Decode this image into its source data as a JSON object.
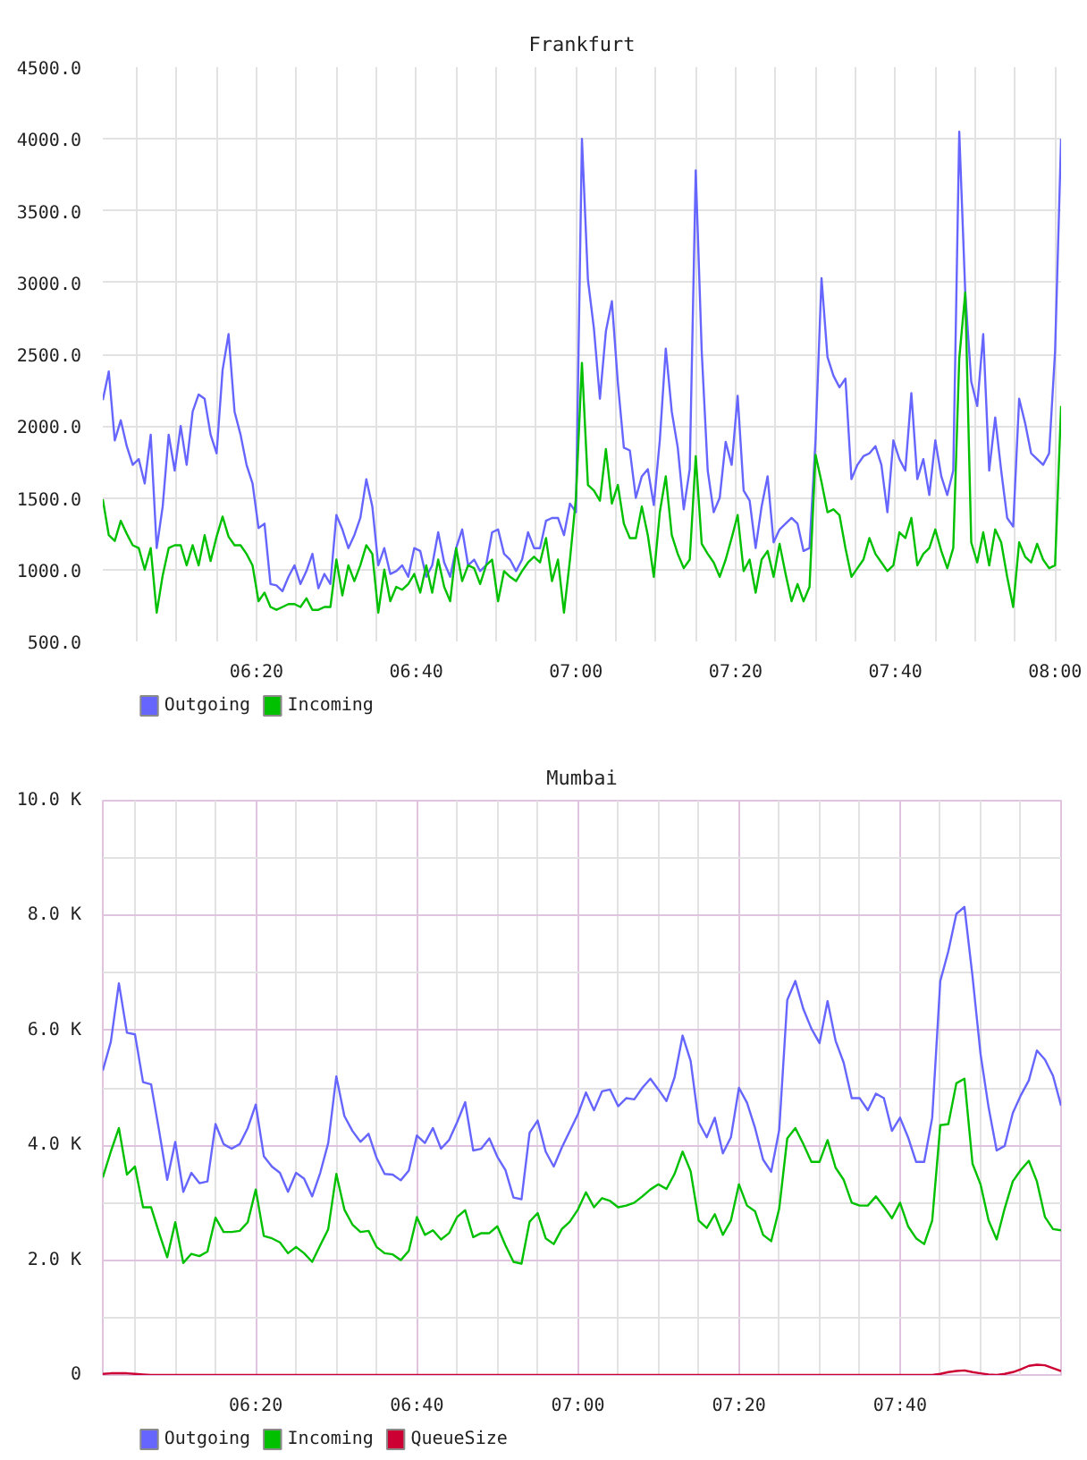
{
  "chart_data": [
    {
      "type": "line",
      "title": "Frankfurt",
      "x": [
        6.0125,
        6.025,
        6.0375,
        6.05,
        6.0625,
        6.075,
        6.0875,
        6.1,
        6.1125,
        6.125,
        6.1375,
        6.15,
        6.1625,
        6.175,
        6.1875,
        6.2,
        6.2125,
        6.225,
        6.2375,
        6.25,
        6.2625,
        6.275,
        6.2875,
        6.3,
        6.3125,
        6.325,
        6.3375,
        6.35,
        6.3625,
        6.375,
        6.3875,
        6.4,
        6.4125,
        6.425,
        6.4375,
        6.45,
        6.4625,
        6.475,
        6.4875,
        6.5,
        6.5125,
        6.525,
        6.5375,
        6.55,
        6.5625,
        6.575,
        6.5875,
        6.6,
        6.6125,
        6.625,
        6.6375,
        6.65,
        6.6625,
        6.675,
        6.6875,
        6.7,
        6.7125,
        6.725,
        6.7375,
        6.75,
        6.7625,
        6.775,
        6.7875,
        6.8,
        6.8125,
        6.825,
        6.8375,
        6.85,
        6.8625,
        6.875,
        6.8875,
        6.9,
        6.9125,
        6.925,
        6.9375,
        6.95,
        6.9625,
        6.975,
        6.9875,
        7.0,
        7.0125,
        7.025,
        7.0375,
        7.05,
        7.0625,
        7.075,
        7.0875,
        7.1,
        7.1125,
        7.125,
        7.1375,
        7.15,
        7.1625,
        7.175,
        7.1875,
        7.2,
        7.2125,
        7.225,
        7.2375,
        7.25,
        7.2625,
        7.275,
        7.2875,
        7.3,
        7.3125,
        7.325,
        7.3375,
        7.35,
        7.3625,
        7.375,
        7.3875,
        7.4,
        7.4125,
        7.425,
        7.4375,
        7.45,
        7.4625,
        7.475,
        7.4875,
        7.5,
        7.5125,
        7.525,
        7.5375,
        7.55,
        7.5625,
        7.575,
        7.5875,
        7.6,
        7.6125,
        7.625,
        7.6375,
        7.65,
        7.6625,
        7.675,
        7.6875,
        7.7,
        7.7125,
        7.725,
        7.7375,
        7.75,
        7.7625,
        7.775,
        7.7875,
        7.8,
        7.8125,
        7.825,
        7.8375,
        7.85,
        7.8625,
        7.875,
        7.8875,
        7.9,
        7.9125,
        7.925,
        7.9375,
        7.95,
        7.9625,
        7.975,
        7.9875,
        8.0,
        8.0125
      ],
      "xlim": [
        6.0125,
        8.0125
      ],
      "xticks": [
        {
          "value": 6.0833,
          "label": null
        },
        {
          "value": 6.1667,
          "label": null
        },
        {
          "value": 6.25,
          "label": null
        },
        {
          "value": 6.3333,
          "label": "06:20"
        },
        {
          "value": 6.4167,
          "label": null
        },
        {
          "value": 6.5,
          "label": null
        },
        {
          "value": 6.5833,
          "label": null
        },
        {
          "value": 6.6667,
          "label": "06:40"
        },
        {
          "value": 6.75,
          "label": null
        },
        {
          "value": 6.8333,
          "label": null
        },
        {
          "value": 6.9167,
          "label": null
        },
        {
          "value": 7.0,
          "label": "07:00"
        },
        {
          "value": 7.0833,
          "label": null
        },
        {
          "value": 7.1667,
          "label": null
        },
        {
          "value": 7.25,
          "label": null
        },
        {
          "value": 7.3333,
          "label": "07:20"
        },
        {
          "value": 7.4167,
          "label": null
        },
        {
          "value": 7.5,
          "label": null
        },
        {
          "value": 7.5833,
          "label": null
        },
        {
          "value": 7.6667,
          "label": "07:40"
        },
        {
          "value": 7.75,
          "label": null
        },
        {
          "value": 7.8333,
          "label": null
        },
        {
          "value": 7.9167,
          "label": null
        },
        {
          "value": 8.0,
          "label": "08:00"
        }
      ],
      "ylim": [
        500,
        4500
      ],
      "yticks": [
        {
          "value": 500,
          "label": "500.0"
        },
        {
          "value": 1000,
          "label": "1000.0"
        },
        {
          "value": 1500,
          "label": "1500.0"
        },
        {
          "value": 2000,
          "label": "2000.0"
        },
        {
          "value": 2500,
          "label": "2500.0"
        },
        {
          "value": 3000,
          "label": "3000.0"
        },
        {
          "value": 3500,
          "label": "3500.0"
        },
        {
          "value": 4000,
          "label": "4000.0"
        },
        {
          "value": 4500,
          "label": "4500.0"
        }
      ],
      "grid": true,
      "legend": "bottom left",
      "series": [
        {
          "name": "Outgoing",
          "color": "#6666ff",
          "values": [
            2180,
            2380,
            1900,
            2040,
            1860,
            1730,
            1770,
            1600,
            1940,
            1150,
            1440,
            1940,
            1690,
            2000,
            1730,
            2100,
            2220,
            2190,
            1940,
            1810,
            2390,
            2640,
            2100,
            1940,
            1730,
            1600,
            1290,
            1320,
            900,
            890,
            850,
            950,
            1030,
            900,
            990,
            1110,
            870,
            970,
            900,
            1380,
            1280,
            1150,
            1240,
            1360,
            1630,
            1440,
            1030,
            1150,
            970,
            990,
            1030,
            950,
            1150,
            1130,
            950,
            1030,
            1260,
            1050,
            950,
            1150,
            1280,
            1030,
            1070,
            990,
            1030,
            1260,
            1280,
            1110,
            1070,
            990,
            1070,
            1260,
            1150,
            1150,
            1340,
            1360,
            1360,
            1240,
            1460,
            1400,
            4000,
            3020,
            2680,
            2190,
            2660,
            2870,
            2300,
            1850,
            1830,
            1500,
            1650,
            1700,
            1450,
            1900,
            2540,
            2100,
            1850,
            1420,
            1700,
            3780,
            2520,
            1690,
            1400,
            1500,
            1890,
            1730,
            2210,
            1550,
            1480,
            1150,
            1440,
            1650,
            1190,
            1280,
            1320,
            1360,
            1320,
            1130,
            1150,
            1900,
            3030,
            2480,
            2350,
            2270,
            2330,
            1630,
            1730,
            1790,
            1810,
            1860,
            1730,
            1400,
            1900,
            1770,
            1690,
            2230,
            1630,
            1770,
            1520,
            1900,
            1650,
            1520,
            1690,
            4050,
            2930,
            2310,
            2140,
            2640,
            1690,
            2060,
            1690,
            1360,
            1300,
            2190,
            2020,
            1810,
            1770,
            1730,
            1810,
            2520,
            4000
          ]
        },
        {
          "name": "Incoming",
          "color": "#00c000",
          "values": [
            1490,
            1240,
            1200,
            1340,
            1250,
            1170,
            1150,
            1000,
            1150,
            700,
            960,
            1150,
            1170,
            1170,
            1030,
            1170,
            1030,
            1240,
            1060,
            1230,
            1370,
            1230,
            1170,
            1170,
            1110,
            1030,
            780,
            840,
            740,
            720,
            740,
            760,
            760,
            740,
            800,
            720,
            720,
            740,
            740,
            1070,
            820,
            1030,
            920,
            1030,
            1170,
            1110,
            700,
            1000,
            780,
            880,
            860,
            900,
            970,
            840,
            1030,
            840,
            1070,
            880,
            780,
            1150,
            920,
            1030,
            1010,
            900,
            1030,
            1070,
            780,
            990,
            950,
            920,
            990,
            1050,
            1090,
            1050,
            1220,
            920,
            1070,
            700,
            1070,
            1500,
            2440,
            1590,
            1550,
            1480,
            1840,
            1460,
            1590,
            1320,
            1220,
            1220,
            1440,
            1240,
            950,
            1400,
            1650,
            1240,
            1110,
            1010,
            1070,
            1790,
            1180,
            1110,
            1050,
            950,
            1070,
            1220,
            1380,
            990,
            1070,
            840,
            1070,
            1130,
            950,
            1180,
            970,
            780,
            900,
            780,
            880,
            1800,
            1610,
            1400,
            1420,
            1380,
            1150,
            950,
            1010,
            1070,
            1220,
            1110,
            1050,
            990,
            1030,
            1260,
            1220,
            1360,
            1030,
            1110,
            1150,
            1280,
            1130,
            1010,
            1150,
            2470,
            2930,
            1190,
            1050,
            1260,
            1030,
            1280,
            1190,
            950,
            740,
            1190,
            1090,
            1050,
            1180,
            1070,
            1010,
            1030,
            2140
          ]
        }
      ]
    },
    {
      "type": "line",
      "title": "Mumbai",
      "x": [
        6.0167,
        6.0333,
        6.05,
        6.0667,
        6.0833,
        6.1,
        6.1167,
        6.1333,
        6.15,
        6.1667,
        6.1833,
        6.2,
        6.2167,
        6.2333,
        6.25,
        6.2667,
        6.2833,
        6.3,
        6.3167,
        6.3333,
        6.35,
        6.3667,
        6.3833,
        6.4,
        6.4167,
        6.4333,
        6.45,
        6.4667,
        6.4833,
        6.5,
        6.5167,
        6.5333,
        6.55,
        6.5667,
        6.5833,
        6.6,
        6.6167,
        6.6333,
        6.65,
        6.6667,
        6.6833,
        6.7,
        6.7167,
        6.7333,
        6.75,
        6.7667,
        6.7833,
        6.8,
        6.8167,
        6.8333,
        6.85,
        6.8667,
        6.8833,
        6.9,
        6.9167,
        6.9333,
        6.95,
        6.9667,
        6.9833,
        7.0,
        7.0167,
        7.0333,
        7.05,
        7.0667,
        7.0833,
        7.1,
        7.1167,
        7.1333,
        7.15,
        7.1667,
        7.1833,
        7.2,
        7.2167,
        7.2333,
        7.25,
        7.2667,
        7.2833,
        7.3,
        7.3167,
        7.3333,
        7.35,
        7.3667,
        7.3833,
        7.4,
        7.4167,
        7.4333,
        7.45,
        7.4667,
        7.4833,
        7.5,
        7.5167,
        7.5333,
        7.55,
        7.5667,
        7.5833,
        7.6,
        7.6167,
        7.6333,
        7.65,
        7.6667,
        7.6833,
        7.7,
        7.7167,
        7.7333,
        7.75,
        7.7667,
        7.7833,
        7.8,
        7.8167,
        7.8333,
        7.85,
        7.8667,
        7.8833,
        7.9,
        7.9167,
        7.9333,
        7.95,
        7.9667,
        7.9833,
        8.0
      ],
      "xlim": [
        6.0167,
        8.0
      ],
      "xticks": [
        {
          "value": 6.0833,
          "label": null
        },
        {
          "value": 6.1667,
          "label": null
        },
        {
          "value": 6.25,
          "label": null
        },
        {
          "value": 6.3333,
          "label": "06:20"
        },
        {
          "value": 6.4167,
          "label": null
        },
        {
          "value": 6.5,
          "label": null
        },
        {
          "value": 6.5833,
          "label": null
        },
        {
          "value": 6.6667,
          "label": "06:40"
        },
        {
          "value": 6.75,
          "label": null
        },
        {
          "value": 6.8333,
          "label": null
        },
        {
          "value": 6.9167,
          "label": null
        },
        {
          "value": 7.0,
          "label": "07:00"
        },
        {
          "value": 7.0833,
          "label": null
        },
        {
          "value": 7.1667,
          "label": null
        },
        {
          "value": 7.25,
          "label": null
        },
        {
          "value": 7.3333,
          "label": "07:20"
        },
        {
          "value": 7.4167,
          "label": null
        },
        {
          "value": 7.5,
          "label": null
        },
        {
          "value": 7.5833,
          "label": null
        },
        {
          "value": 7.6667,
          "label": "07:40"
        },
        {
          "value": 7.75,
          "label": null
        },
        {
          "value": 7.8333,
          "label": null
        },
        {
          "value": 7.9167,
          "label": null
        }
      ],
      "ylim": [
        0,
        10000
      ],
      "yticks": [
        0,
        {
          "value": 1000,
          "label": null
        },
        {
          "value": 2000,
          "label": "2.0 K"
        },
        {
          "value": 3000,
          "label": null
        },
        {
          "value": 4000,
          "label": "4.0 K"
        },
        {
          "value": 5000,
          "label": null
        },
        {
          "value": 6000,
          "label": "6.0 K"
        },
        {
          "value": 7000,
          "label": null
        },
        {
          "value": 8000,
          "label": "8.0 K"
        },
        {
          "value": 9000,
          "label": null
        },
        {
          "value": 10000,
          "label": "10.0 K"
        }
      ],
      "grid": true,
      "legend": "bottom left",
      "series": [
        {
          "name": "Outgoing",
          "color": "#6666ff",
          "values": [
            5300,
            5800,
            6820,
            5960,
            5930,
            5100,
            5060,
            4250,
            3400,
            4060,
            3190,
            3520,
            3340,
            3370,
            4370,
            4020,
            3940,
            4020,
            4300,
            4710,
            3810,
            3630,
            3520,
            3190,
            3520,
            3420,
            3110,
            3520,
            4040,
            5200,
            4510,
            4250,
            4060,
            4200,
            3780,
            3500,
            3490,
            3390,
            3560,
            4170,
            4040,
            4300,
            3940,
            4090,
            4400,
            4750,
            3910,
            3940,
            4120,
            3800,
            3570,
            3090,
            3060,
            4220,
            4430,
            3890,
            3630,
            3960,
            4250,
            4540,
            4920,
            4610,
            4940,
            4970,
            4680,
            4820,
            4800,
            5000,
            5160,
            4970,
            4770,
            5180,
            5910,
            5470,
            4400,
            4140,
            4480,
            3860,
            4140,
            5000,
            4740,
            4300,
            3750,
            3540,
            4270,
            6530,
            6860,
            6370,
            6030,
            5780,
            6510,
            5820,
            5440,
            4820,
            4820,
            4610,
            4900,
            4820,
            4250,
            4480,
            4140,
            3710,
            3710,
            4480,
            6860,
            7380,
            8030,
            8150,
            6940,
            5590,
            4660,
            3910,
            3990,
            4560,
            4870,
            5130,
            5650,
            5490,
            5210,
            4690
          ]
        },
        {
          "name": "Incoming",
          "color": "#00c000",
          "values": [
            3440,
            3890,
            4300,
            3490,
            3630,
            2920,
            2920,
            2470,
            2050,
            2660,
            1950,
            2110,
            2070,
            2150,
            2740,
            2490,
            2490,
            2510,
            2660,
            3230,
            2420,
            2380,
            2310,
            2120,
            2230,
            2120,
            1970,
            2260,
            2540,
            3500,
            2880,
            2620,
            2490,
            2510,
            2230,
            2120,
            2100,
            2000,
            2160,
            2750,
            2440,
            2520,
            2360,
            2470,
            2750,
            2870,
            2400,
            2470,
            2470,
            2590,
            2260,
            1970,
            1940,
            2670,
            2820,
            2380,
            2280,
            2540,
            2670,
            2880,
            3180,
            2920,
            3080,
            3030,
            2920,
            2950,
            3000,
            3110,
            3230,
            3320,
            3240,
            3500,
            3890,
            3550,
            2690,
            2560,
            2800,
            2440,
            2690,
            3320,
            2950,
            2850,
            2440,
            2330,
            2900,
            4120,
            4300,
            4020,
            3710,
            3710,
            4090,
            3610,
            3400,
            3000,
            2950,
            2950,
            3110,
            2930,
            2730,
            3000,
            2590,
            2380,
            2280,
            2690,
            4350,
            4370,
            5080,
            5160,
            3680,
            3320,
            2690,
            2360,
            2900,
            3370,
            3570,
            3730,
            3370,
            2750,
            2540,
            2520
          ]
        },
        {
          "name": "QueueSize",
          "color": "#cc0033",
          "values": [
            20,
            30,
            30,
            30,
            20,
            10,
            0,
            0,
            0,
            0,
            0,
            0,
            0,
            0,
            0,
            0,
            0,
            0,
            0,
            0,
            0,
            0,
            0,
            0,
            0,
            0,
            0,
            0,
            0,
            0,
            0,
            0,
            0,
            0,
            0,
            0,
            0,
            0,
            0,
            0,
            0,
            0,
            0,
            0,
            0,
            0,
            0,
            0,
            0,
            0,
            0,
            0,
            0,
            0,
            0,
            0,
            0,
            0,
            0,
            0,
            0,
            0,
            0,
            0,
            0,
            0,
            0,
            0,
            0,
            0,
            0,
            0,
            0,
            0,
            0,
            0,
            0,
            0,
            0,
            0,
            0,
            0,
            0,
            0,
            0,
            0,
            0,
            0,
            0,
            0,
            0,
            0,
            0,
            0,
            0,
            0,
            0,
            0,
            0,
            0,
            0,
            0,
            0,
            0,
            20,
            50,
            70,
            80,
            50,
            30,
            10,
            0,
            20,
            50,
            100,
            160,
            180,
            170,
            120,
            70
          ]
        }
      ]
    }
  ]
}
